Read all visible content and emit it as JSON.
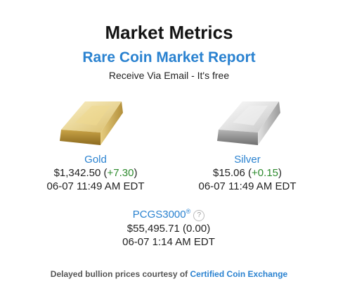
{
  "header": {
    "title": "Market Metrics",
    "report_link": "Rare Coin Market Report",
    "subtitle": "Receive Via Email - It's free"
  },
  "metals": {
    "gold": {
      "name": "Gold",
      "price": "$1,342.50",
      "change": "+7.30",
      "timestamp": "06-07 11:49 AM EDT",
      "icon": "gold-bar-icon"
    },
    "silver": {
      "name": "Silver",
      "price": "$15.06",
      "change": "+0.15",
      "timestamp": "06-07 11:49 AM EDT",
      "icon": "silver-bar-icon"
    }
  },
  "pcgs": {
    "name": "PCGS3000",
    "registered_mark": "®",
    "help": "?",
    "price": "$55,495.71",
    "change": "(0.00)",
    "timestamp": "06-07 1:14 AM EDT"
  },
  "footer": {
    "prefix": "Delayed bullion prices courtesy of ",
    "link": "Certified Coin Exchange"
  },
  "colors": {
    "link": "#2a82d0",
    "positive": "#2e8b2e"
  }
}
